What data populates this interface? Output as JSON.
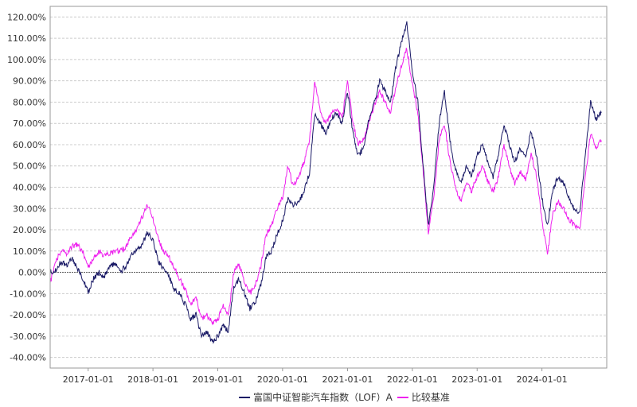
{
  "chart_data": {
    "type": "line",
    "title": "",
    "xlabel": "",
    "ylabel": "",
    "ylim": [
      -0.45,
      1.25
    ],
    "y_ticks": [
      "120.00%",
      "110.00%",
      "100.00%",
      "90.00%",
      "80.00%",
      "70.00%",
      "60.00%",
      "50.00%",
      "40.00%",
      "30.00%",
      "20.00%",
      "10.00%",
      "0.00%",
      "-10.00%",
      "-20.00%",
      "-30.00%",
      "-40.00%"
    ],
    "x_ticks": [
      "2017-01-01",
      "2018-01-01",
      "2019-01-01",
      "2020-01-01",
      "2021-01-01",
      "2022-01-01",
      "2023-01-01",
      "2024-01-01"
    ],
    "grid": true,
    "legend_position": "bottom-center",
    "series": [
      {
        "name": "富国中证智能汽车指数（LOF）A",
        "color": "#1a1a66",
        "points": [
          [
            "2016-06-01",
            0.0
          ],
          [
            "2016-07-01",
            0.01
          ],
          [
            "2016-08-01",
            0.05
          ],
          [
            "2016-09-01",
            0.03
          ],
          [
            "2016-10-01",
            0.07
          ],
          [
            "2016-11-01",
            0.02
          ],
          [
            "2016-12-01",
            -0.03
          ],
          [
            "2017-01-01",
            -0.09
          ],
          [
            "2017-02-01",
            -0.03
          ],
          [
            "2017-03-01",
            0.0
          ],
          [
            "2017-04-01",
            -0.02
          ],
          [
            "2017-05-01",
            0.03
          ],
          [
            "2017-06-01",
            0.04
          ],
          [
            "2017-07-01",
            0.0
          ],
          [
            "2017-08-01",
            0.03
          ],
          [
            "2017-09-01",
            0.08
          ],
          [
            "2017-10-01",
            0.1
          ],
          [
            "2017-11-01",
            0.13
          ],
          [
            "2017-12-01",
            0.19
          ],
          [
            "2018-01-01",
            0.15
          ],
          [
            "2018-02-01",
            0.05
          ],
          [
            "2018-03-01",
            0.02
          ],
          [
            "2018-04-01",
            -0.02
          ],
          [
            "2018-05-01",
            -0.08
          ],
          [
            "2018-06-01",
            -0.1
          ],
          [
            "2018-07-01",
            -0.15
          ],
          [
            "2018-08-01",
            -0.22
          ],
          [
            "2018-09-01",
            -0.2
          ],
          [
            "2018-10-01",
            -0.3
          ],
          [
            "2018-11-01",
            -0.28
          ],
          [
            "2018-12-01",
            -0.33
          ],
          [
            "2019-01-01",
            -0.3
          ],
          [
            "2019-02-01",
            -0.25
          ],
          [
            "2019-03-01",
            -0.28
          ],
          [
            "2019-04-01",
            -0.07
          ],
          [
            "2019-05-01",
            -0.03
          ],
          [
            "2019-06-01",
            -0.1
          ],
          [
            "2019-07-01",
            -0.17
          ],
          [
            "2019-08-01",
            -0.14
          ],
          [
            "2019-09-01",
            -0.06
          ],
          [
            "2019-10-01",
            0.07
          ],
          [
            "2019-11-01",
            0.1
          ],
          [
            "2019-12-01",
            0.18
          ],
          [
            "2020-01-01",
            0.24
          ],
          [
            "2020-02-01",
            0.35
          ],
          [
            "2020-03-01",
            0.32
          ],
          [
            "2020-04-01",
            0.33
          ],
          [
            "2020-05-01",
            0.38
          ],
          [
            "2020-06-01",
            0.47
          ],
          [
            "2020-07-01",
            0.75
          ],
          [
            "2020-08-01",
            0.7
          ],
          [
            "2020-09-01",
            0.65
          ],
          [
            "2020-10-01",
            0.72
          ],
          [
            "2020-11-01",
            0.75
          ],
          [
            "2020-12-01",
            0.7
          ],
          [
            "2021-01-01",
            0.85
          ],
          [
            "2021-02-01",
            0.65
          ],
          [
            "2021-03-01",
            0.55
          ],
          [
            "2021-04-01",
            0.58
          ],
          [
            "2021-05-01",
            0.72
          ],
          [
            "2021-06-01",
            0.8
          ],
          [
            "2021-07-01",
            0.9
          ],
          [
            "2021-08-01",
            0.85
          ],
          [
            "2021-09-01",
            0.8
          ],
          [
            "2021-10-01",
            0.97
          ],
          [
            "2021-11-01",
            1.08
          ],
          [
            "2021-12-01",
            1.17
          ],
          [
            "2022-01-01",
            0.95
          ],
          [
            "2022-02-01",
            0.8
          ],
          [
            "2022-03-01",
            0.52
          ],
          [
            "2022-04-01",
            0.22
          ],
          [
            "2022-05-01",
            0.4
          ],
          [
            "2022-06-01",
            0.7
          ],
          [
            "2022-07-01",
            0.85
          ],
          [
            "2022-08-01",
            0.62
          ],
          [
            "2022-09-01",
            0.48
          ],
          [
            "2022-10-01",
            0.42
          ],
          [
            "2022-11-01",
            0.5
          ],
          [
            "2022-12-01",
            0.45
          ],
          [
            "2023-01-01",
            0.55
          ],
          [
            "2023-02-01",
            0.6
          ],
          [
            "2023-03-01",
            0.52
          ],
          [
            "2023-04-01",
            0.45
          ],
          [
            "2023-05-01",
            0.55
          ],
          [
            "2023-06-01",
            0.7
          ],
          [
            "2023-07-01",
            0.6
          ],
          [
            "2023-08-01",
            0.52
          ],
          [
            "2023-09-01",
            0.58
          ],
          [
            "2023-10-01",
            0.55
          ],
          [
            "2023-11-01",
            0.66
          ],
          [
            "2023-12-01",
            0.55
          ],
          [
            "2024-01-01",
            0.35
          ],
          [
            "2024-02-01",
            0.22
          ],
          [
            "2024-03-01",
            0.38
          ],
          [
            "2024-04-01",
            0.45
          ],
          [
            "2024-05-01",
            0.42
          ],
          [
            "2024-06-01",
            0.35
          ],
          [
            "2024-07-01",
            0.3
          ],
          [
            "2024-08-01",
            0.28
          ],
          [
            "2024-09-01",
            0.55
          ],
          [
            "2024-10-01",
            0.8
          ],
          [
            "2024-11-01",
            0.72
          ],
          [
            "2024-12-01",
            0.75
          ]
        ]
      },
      {
        "name": "比较基准",
        "color": "#ee22ee",
        "points": [
          [
            "2016-06-01",
            -0.05
          ],
          [
            "2016-07-01",
            0.05
          ],
          [
            "2016-08-01",
            0.1
          ],
          [
            "2016-09-01",
            0.09
          ],
          [
            "2016-10-01",
            0.12
          ],
          [
            "2016-11-01",
            0.13
          ],
          [
            "2016-12-01",
            0.1
          ],
          [
            "2017-01-01",
            0.02
          ],
          [
            "2017-02-01",
            0.07
          ],
          [
            "2017-03-01",
            0.1
          ],
          [
            "2017-04-01",
            0.08
          ],
          [
            "2017-05-01",
            0.09
          ],
          [
            "2017-06-01",
            0.1
          ],
          [
            "2017-07-01",
            0.1
          ],
          [
            "2017-08-01",
            0.12
          ],
          [
            "2017-09-01",
            0.17
          ],
          [
            "2017-10-01",
            0.2
          ],
          [
            "2017-11-01",
            0.26
          ],
          [
            "2017-12-01",
            0.32
          ],
          [
            "2018-01-01",
            0.25
          ],
          [
            "2018-02-01",
            0.15
          ],
          [
            "2018-03-01",
            0.1
          ],
          [
            "2018-04-01",
            0.07
          ],
          [
            "2018-05-01",
            0.02
          ],
          [
            "2018-06-01",
            -0.03
          ],
          [
            "2018-07-01",
            -0.08
          ],
          [
            "2018-08-01",
            -0.15
          ],
          [
            "2018-09-01",
            -0.12
          ],
          [
            "2018-10-01",
            -0.22
          ],
          [
            "2018-11-01",
            -0.2
          ],
          [
            "2018-12-01",
            -0.24
          ],
          [
            "2019-01-01",
            -0.22
          ],
          [
            "2019-02-01",
            -0.16
          ],
          [
            "2019-03-01",
            -0.21
          ],
          [
            "2019-04-01",
            0.0
          ],
          [
            "2019-05-01",
            0.04
          ],
          [
            "2019-06-01",
            -0.05
          ],
          [
            "2019-07-01",
            -0.1
          ],
          [
            "2019-08-01",
            -0.06
          ],
          [
            "2019-09-01",
            0.03
          ],
          [
            "2019-10-01",
            0.18
          ],
          [
            "2019-11-01",
            0.22
          ],
          [
            "2019-12-01",
            0.3
          ],
          [
            "2020-01-01",
            0.35
          ],
          [
            "2020-02-01",
            0.5
          ],
          [
            "2020-03-01",
            0.4
          ],
          [
            "2020-04-01",
            0.45
          ],
          [
            "2020-05-01",
            0.52
          ],
          [
            "2020-06-01",
            0.62
          ],
          [
            "2020-07-01",
            0.9
          ],
          [
            "2020-08-01",
            0.75
          ],
          [
            "2020-09-01",
            0.7
          ],
          [
            "2020-10-01",
            0.74
          ],
          [
            "2020-11-01",
            0.77
          ],
          [
            "2020-12-01",
            0.72
          ],
          [
            "2021-01-01",
            0.9
          ],
          [
            "2021-02-01",
            0.7
          ],
          [
            "2021-03-01",
            0.6
          ],
          [
            "2021-04-01",
            0.62
          ],
          [
            "2021-05-01",
            0.7
          ],
          [
            "2021-06-01",
            0.78
          ],
          [
            "2021-07-01",
            0.85
          ],
          [
            "2021-08-01",
            0.8
          ],
          [
            "2021-09-01",
            0.75
          ],
          [
            "2021-10-01",
            0.88
          ],
          [
            "2021-11-01",
            0.97
          ],
          [
            "2021-12-01",
            1.05
          ],
          [
            "2022-01-01",
            0.88
          ],
          [
            "2022-02-01",
            0.75
          ],
          [
            "2022-03-01",
            0.5
          ],
          [
            "2022-04-01",
            0.18
          ],
          [
            "2022-05-01",
            0.35
          ],
          [
            "2022-06-01",
            0.62
          ],
          [
            "2022-07-01",
            0.7
          ],
          [
            "2022-08-01",
            0.52
          ],
          [
            "2022-09-01",
            0.4
          ],
          [
            "2022-10-01",
            0.33
          ],
          [
            "2022-11-01",
            0.42
          ],
          [
            "2022-12-01",
            0.38
          ],
          [
            "2023-01-01",
            0.45
          ],
          [
            "2023-02-01",
            0.5
          ],
          [
            "2023-03-01",
            0.43
          ],
          [
            "2023-04-01",
            0.38
          ],
          [
            "2023-05-01",
            0.45
          ],
          [
            "2023-06-01",
            0.6
          ],
          [
            "2023-07-01",
            0.5
          ],
          [
            "2023-08-01",
            0.42
          ],
          [
            "2023-09-01",
            0.47
          ],
          [
            "2023-10-01",
            0.44
          ],
          [
            "2023-11-01",
            0.56
          ],
          [
            "2023-12-01",
            0.45
          ],
          [
            "2024-01-01",
            0.25
          ],
          [
            "2024-02-01",
            0.08
          ],
          [
            "2024-03-01",
            0.28
          ],
          [
            "2024-04-01",
            0.33
          ],
          [
            "2024-05-01",
            0.3
          ],
          [
            "2024-06-01",
            0.25
          ],
          [
            "2024-07-01",
            0.22
          ],
          [
            "2024-08-01",
            0.2
          ],
          [
            "2024-09-01",
            0.45
          ],
          [
            "2024-10-01",
            0.65
          ],
          [
            "2024-11-01",
            0.58
          ],
          [
            "2024-12-01",
            0.62
          ]
        ]
      }
    ]
  }
}
